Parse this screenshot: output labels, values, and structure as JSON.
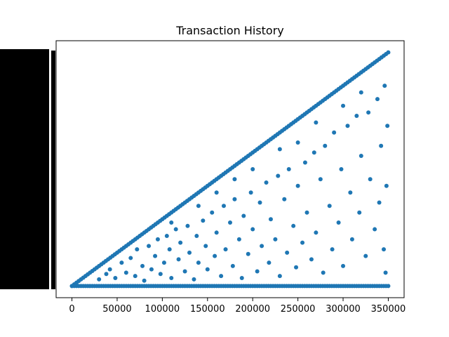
{
  "chart_data": {
    "type": "scatter",
    "title": "Transaction History",
    "xlabel": "",
    "ylabel": "",
    "xlim": [
      -17500,
      367500
    ],
    "ylim": [
      -17500,
      367500
    ],
    "x_ticks": [
      0,
      50000,
      100000,
      150000,
      200000,
      250000,
      300000,
      350000
    ],
    "x_tick_labels": [
      "0",
      "50000",
      "100000",
      "150000",
      "200000",
      "250000",
      "300000",
      "350000"
    ],
    "y_tick_labels_note": "obscured",
    "grid": false,
    "legend": "none",
    "marker_color": "#1f77b4",
    "series": [
      {
        "points_diagonal_range": [
          0,
          350000
        ],
        "points_baseline_y": 0,
        "points": [
          [
            30000,
            10000
          ],
          [
            38000,
            18000
          ],
          [
            42000,
            25000
          ],
          [
            48000,
            12000
          ],
          [
            55000,
            35000
          ],
          [
            60000,
            20000
          ],
          [
            65000,
            42000
          ],
          [
            70000,
            15000
          ],
          [
            72000,
            55000
          ],
          [
            78000,
            30000
          ],
          [
            80000,
            8000
          ],
          [
            85000,
            60000
          ],
          [
            88000,
            25000
          ],
          [
            92000,
            45000
          ],
          [
            95000,
            70000
          ],
          [
            98000,
            18000
          ],
          [
            102000,
            35000
          ],
          [
            105000,
            75000
          ],
          [
            108000,
            55000
          ],
          [
            110000,
            12000
          ],
          [
            115000,
            85000
          ],
          [
            118000,
            40000
          ],
          [
            120000,
            65000
          ],
          [
            125000,
            22000
          ],
          [
            128000,
            90000
          ],
          [
            130000,
            50000
          ],
          [
            135000,
            10000
          ],
          [
            138000,
            75000
          ],
          [
            140000,
            35000
          ],
          [
            145000,
            98000
          ],
          [
            148000,
            60000
          ],
          [
            150000,
            25000
          ],
          [
            155000,
            110000
          ],
          [
            158000,
            45000
          ],
          [
            160000,
            80000
          ],
          [
            165000,
            15000
          ],
          [
            168000,
            120000
          ],
          [
            170000,
            55000
          ],
          [
            175000,
            95000
          ],
          [
            178000,
            30000
          ],
          [
            180000,
            130000
          ],
          [
            185000,
            70000
          ],
          [
            188000,
            12000
          ],
          [
            190000,
            105000
          ],
          [
            195000,
            48000
          ],
          [
            198000,
            140000
          ],
          [
            200000,
            85000
          ],
          [
            205000,
            22000
          ],
          [
            208000,
            125000
          ],
          [
            210000,
            60000
          ],
          [
            215000,
            155000
          ],
          [
            218000,
            35000
          ],
          [
            220000,
            100000
          ],
          [
            225000,
            70000
          ],
          [
            228000,
            165000
          ],
          [
            230000,
            15000
          ],
          [
            235000,
            130000
          ],
          [
            238000,
            50000
          ],
          [
            240000,
            175000
          ],
          [
            245000,
            90000
          ],
          [
            248000,
            28000
          ],
          [
            250000,
            150000
          ],
          [
            255000,
            65000
          ],
          [
            258000,
            185000
          ],
          [
            260000,
            110000
          ],
          [
            265000,
            40000
          ],
          [
            268000,
            200000
          ],
          [
            270000,
            80000
          ],
          [
            275000,
            160000
          ],
          [
            278000,
            20000
          ],
          [
            280000,
            210000
          ],
          [
            285000,
            120000
          ],
          [
            288000,
            55000
          ],
          [
            290000,
            230000
          ],
          [
            295000,
            95000
          ],
          [
            298000,
            175000
          ],
          [
            300000,
            30000
          ],
          [
            305000,
            240000
          ],
          [
            308000,
            140000
          ],
          [
            310000,
            70000
          ],
          [
            315000,
            255000
          ],
          [
            318000,
            110000
          ],
          [
            320000,
            195000
          ],
          [
            325000,
            45000
          ],
          [
            328000,
            260000
          ],
          [
            330000,
            160000
          ],
          [
            335000,
            85000
          ],
          [
            338000,
            280000
          ],
          [
            340000,
            125000
          ],
          [
            342000,
            210000
          ],
          [
            345000,
            55000
          ],
          [
            346000,
            300000
          ],
          [
            348000,
            150000
          ],
          [
            349000,
            240000
          ],
          [
            347000,
            20000
          ],
          [
            140000,
            120000
          ],
          [
            200000,
            175000
          ],
          [
            250000,
            215000
          ],
          [
            300000,
            270000
          ],
          [
            320000,
            290000
          ],
          [
            180000,
            160000
          ],
          [
            230000,
            205000
          ],
          [
            270000,
            245000
          ],
          [
            160000,
            140000
          ],
          [
            110000,
            95000
          ]
        ]
      }
    ]
  }
}
